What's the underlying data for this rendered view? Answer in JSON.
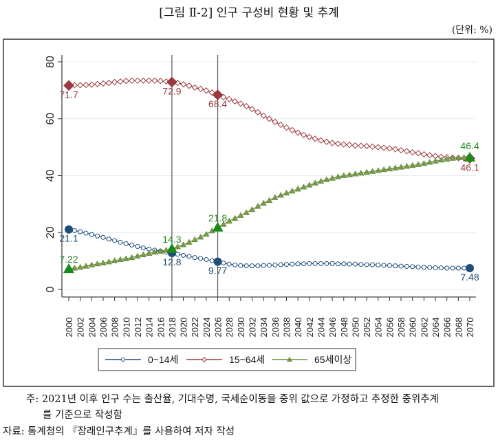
{
  "header": {
    "title": "[그림 Ⅱ-2] 인구 구성비 현황 및 추계",
    "unit": "(단위: %)"
  },
  "chart_data": {
    "type": "line",
    "title": "",
    "xlabel": "",
    "ylabel": "",
    "ylim": [
      0,
      80
    ],
    "yticks": [
      "0",
      "20",
      "40",
      "60",
      "80"
    ],
    "xlim": [
      2000,
      2070
    ],
    "x_tick_step": 2,
    "grid": true,
    "legend_position": "bottom",
    "reference_lines_x": [
      2018,
      2026
    ],
    "x": [
      2000,
      2001,
      2002,
      2003,
      2004,
      2005,
      2006,
      2007,
      2008,
      2009,
      2010,
      2011,
      2012,
      2013,
      2014,
      2015,
      2016,
      2017,
      2018,
      2019,
      2020,
      2021,
      2022,
      2023,
      2024,
      2025,
      2026,
      2027,
      2028,
      2029,
      2030,
      2031,
      2032,
      2033,
      2034,
      2035,
      2036,
      2037,
      2038,
      2039,
      2040,
      2041,
      2042,
      2043,
      2044,
      2045,
      2046,
      2047,
      2048,
      2049,
      2050,
      2051,
      2052,
      2053,
      2054,
      2055,
      2056,
      2057,
      2058,
      2059,
      2060,
      2061,
      2062,
      2063,
      2064,
      2065,
      2066,
      2067,
      2068,
      2069,
      2070
    ],
    "series": [
      {
        "name": "0~14세",
        "color": "#1f4e79",
        "marker": "circle",
        "values": [
          21.1,
          20.7,
          20.3,
          19.8,
          19.3,
          18.8,
          18.3,
          17.7,
          17.2,
          16.6,
          16.1,
          15.6,
          15.1,
          14.6,
          14.2,
          13.8,
          13.5,
          13.1,
          12.8,
          12.4,
          12.0,
          11.6,
          11.2,
          10.9,
          10.5,
          10.1,
          9.77,
          9.3,
          8.9,
          8.6,
          8.4,
          8.3,
          8.3,
          8.3,
          8.4,
          8.5,
          8.6,
          8.7,
          8.8,
          8.9,
          9.0,
          9.0,
          9.1,
          9.1,
          9.1,
          9.1,
          9.1,
          9.0,
          9.0,
          8.9,
          8.9,
          8.8,
          8.7,
          8.7,
          8.6,
          8.5,
          8.4,
          8.3,
          8.2,
          8.1,
          8.0,
          7.9,
          7.8,
          7.7,
          7.6,
          7.6,
          7.5,
          7.5,
          7.5,
          7.5,
          7.48
        ],
        "labels": [
          {
            "x": 2000,
            "text": "21.1"
          },
          {
            "x": 2018,
            "text": "12.8"
          },
          {
            "x": 2026,
            "text": "9.77"
          },
          {
            "x": 2070,
            "text": "7.48"
          }
        ]
      },
      {
        "name": "15~64세",
        "color": "#9b3a3e",
        "marker": "diamond",
        "values": [
          71.7,
          71.8,
          71.8,
          71.9,
          72.0,
          72.2,
          72.4,
          72.6,
          72.9,
          73.1,
          73.3,
          73.4,
          73.4,
          73.4,
          73.4,
          73.4,
          73.3,
          73.1,
          72.9,
          72.6,
          72.1,
          71.6,
          71.0,
          70.5,
          69.9,
          69.2,
          68.4,
          67.6,
          66.9,
          66.1,
          65.3,
          64.4,
          63.4,
          62.3,
          61.1,
          60.0,
          58.9,
          57.9,
          56.9,
          56.0,
          55.1,
          54.3,
          53.6,
          53.0,
          52.4,
          51.9,
          51.5,
          51.2,
          51.0,
          50.8,
          50.6,
          50.5,
          50.4,
          50.2,
          50.0,
          49.8,
          49.6,
          49.3,
          48.9,
          48.6,
          48.2,
          47.9,
          47.5,
          47.2,
          46.9,
          46.6,
          46.4,
          46.3,
          46.2,
          46.1,
          46.1
        ],
        "labels": [
          {
            "x": 2000,
            "text": "71.7"
          },
          {
            "x": 2018,
            "text": "72.9"
          },
          {
            "x": 2026,
            "text": "68.4"
          },
          {
            "x": 2070,
            "text": "46.1"
          }
        ]
      },
      {
        "name": "65세이상",
        "color": "#6b8e3d",
        "marker": "triangle",
        "values": [
          7.22,
          7.5,
          7.8,
          8.2,
          8.6,
          9.0,
          9.3,
          9.7,
          10.1,
          10.5,
          10.8,
          11.2,
          11.7,
          12.2,
          12.7,
          13.1,
          13.4,
          13.8,
          14.3,
          15.0,
          15.7,
          16.6,
          17.5,
          18.4,
          19.4,
          20.6,
          21.8,
          22.9,
          24.0,
          25.0,
          26.0,
          27.0,
          28.1,
          29.2,
          30.3,
          31.3,
          32.3,
          33.1,
          33.9,
          34.6,
          35.3,
          36.0,
          36.7,
          37.4,
          38.0,
          38.6,
          39.1,
          39.6,
          40.0,
          40.3,
          40.6,
          40.9,
          41.2,
          41.5,
          41.8,
          42.1,
          42.4,
          42.7,
          43.0,
          43.3,
          43.6,
          43.9,
          44.3,
          44.7,
          45.1,
          45.5,
          45.8,
          46.1,
          46.3,
          46.4,
          46.4
        ],
        "labels": [
          {
            "x": 2000,
            "text": "7.22"
          },
          {
            "x": 2018,
            "text": "14.3"
          },
          {
            "x": 2026,
            "text": "21.8"
          },
          {
            "x": 2070,
            "text": "46.4"
          }
        ]
      }
    ]
  },
  "notes": {
    "note_line1": "주: 2021년 이후 인구 수는 출산율, 기대수명, 국세순이동을 중위 값으로 가정하고 추정한 중위추계",
    "note_line2": "를 기준으로 작성함",
    "source": "자료: 통계청의 『장래인구추계』를 사용하여 저자 작성"
  }
}
